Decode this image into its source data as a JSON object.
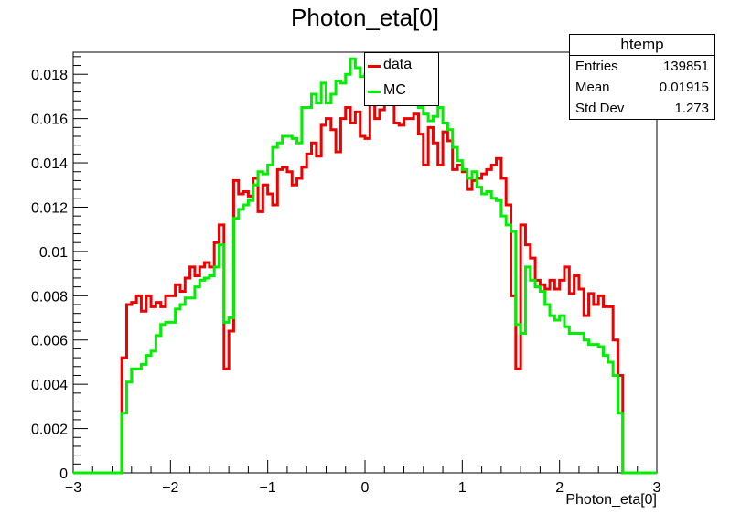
{
  "title": "Photon_eta[0]",
  "stats": {
    "name": "htemp",
    "rows": [
      {
        "label": "Entries",
        "value": "139851"
      },
      {
        "label": "Mean",
        "value": "0.01915"
      },
      {
        "label": "Std Dev",
        "value": "1.273"
      }
    ]
  },
  "legend": [
    {
      "label": "data",
      "color": "#ee0000"
    },
    {
      "label": "MC",
      "color": "#00ee00"
    }
  ],
  "chart_data": {
    "type": "line",
    "title": "Photon_eta[0]",
    "xlabel": "Photon_eta[0]",
    "ylabel": "",
    "xlim": [
      -3,
      3
    ],
    "ylim": [
      0,
      0.019
    ],
    "xticks": [
      -3,
      -2,
      -1,
      0,
      1,
      2,
      3
    ],
    "yticks": [
      0,
      0.002,
      0.004,
      0.006,
      0.008,
      0.01,
      0.012,
      0.014,
      0.016,
      0.018
    ],
    "ytick_labels": [
      "0",
      "0.002",
      "0.004",
      "0.006",
      "0.008",
      "0.01",
      "0.012",
      "0.014",
      "0.016",
      "0.018"
    ],
    "bins": {
      "min": -3,
      "max": 3,
      "count": 120
    },
    "series": [
      {
        "name": "data",
        "color": "#ee0000",
        "values": [
          0,
          0,
          0,
          0,
          0,
          0,
          0,
          0,
          0,
          0,
          0.0052,
          0.0076,
          0.0077,
          0.008,
          0.0073,
          0.008,
          0.0075,
          0.0077,
          0.0075,
          0.008,
          0.008,
          0.0085,
          0.0082,
          0.0088,
          0.0093,
          0.0089,
          0.0093,
          0.0095,
          0.0093,
          0.0104,
          0.0112,
          0.0047,
          0.0064,
          0.0132,
          0.0126,
          0.0127,
          0.0125,
          0.0133,
          0.0118,
          0.013,
          0.0126,
          0.0121,
          0.0137,
          0.0138,
          0.0136,
          0.013,
          0.0133,
          0.0138,
          0.0144,
          0.0149,
          0.0143,
          0.0157,
          0.016,
          0.0155,
          0.0145,
          0.016,
          0.0165,
          0.0158,
          0.0163,
          0.0152,
          0.0151,
          0.017,
          0.016,
          0.0164,
          0.017,
          0.0174,
          0.0158,
          0.0157,
          0.016,
          0.016,
          0.0162,
          0.0153,
          0.0139,
          0.0156,
          0.0149,
          0.0139,
          0.0154,
          0.015,
          0.0137,
          0.0139,
          0.0136,
          0.0128,
          0.0132,
          0.0133,
          0.0135,
          0.0137,
          0.0139,
          0.0142,
          0.0133,
          0.0121,
          0.008,
          0.0047,
          0.0112,
          0.0103,
          0.0097,
          0.0087,
          0.0085,
          0.0083,
          0.0087,
          0.0083,
          0.0087,
          0.0093,
          0.0081,
          0.0089,
          0.0083,
          0.0071,
          0.0081,
          0.0076,
          0.008,
          0.0075,
          0.0075,
          0.006,
          0.0044,
          0,
          0,
          0,
          0,
          0,
          0,
          0
        ]
      },
      {
        "name": "MC",
        "color": "#00ee00",
        "values": [
          0,
          0,
          0,
          0,
          0,
          0,
          0,
          0,
          0,
          0,
          0.0027,
          0.0041,
          0.0047,
          0.0047,
          0.0049,
          0.0053,
          0.0055,
          0.0062,
          0.0067,
          0.0068,
          0.0068,
          0.0074,
          0.0076,
          0.0079,
          0.0079,
          0.0084,
          0.0087,
          0.0088,
          0.0089,
          0.0093,
          0.0103,
          0.0068,
          0.007,
          0.0115,
          0.0119,
          0.0121,
          0.0123,
          0.013,
          0.0136,
          0.0135,
          0.0139,
          0.0147,
          0.0149,
          0.0152,
          0.0152,
          0.0151,
          0.0149,
          0.0165,
          0.0165,
          0.0171,
          0.0167,
          0.0176,
          0.0167,
          0.0171,
          0.0177,
          0.0176,
          0.018,
          0.0187,
          0.0183,
          0.0179,
          0.018,
          0.018,
          0.0187,
          0.0189,
          0.0187,
          0.018,
          0.0177,
          0.0183,
          0.0177,
          0.0173,
          0.0174,
          0.0165,
          0.0162,
          0.0159,
          0.0161,
          0.0165,
          0.0158,
          0.0155,
          0.0147,
          0.0141,
          0.0137,
          0.0133,
          0.0136,
          0.0129,
          0.0126,
          0.0127,
          0.0124,
          0.0123,
          0.0116,
          0.0112,
          0.0109,
          0.0067,
          0.0063,
          0.0093,
          0.0087,
          0.0084,
          0.0082,
          0.0076,
          0.0071,
          0.0069,
          0.0071,
          0.0066,
          0.0063,
          0.0063,
          0.0063,
          0.006,
          0.0058,
          0.0058,
          0.0057,
          0.0053,
          0.005,
          0.0044,
          0.0027,
          0,
          0,
          0,
          0,
          0,
          0,
          0
        ]
      }
    ],
    "grid": false,
    "legend_position": "top-center"
  }
}
